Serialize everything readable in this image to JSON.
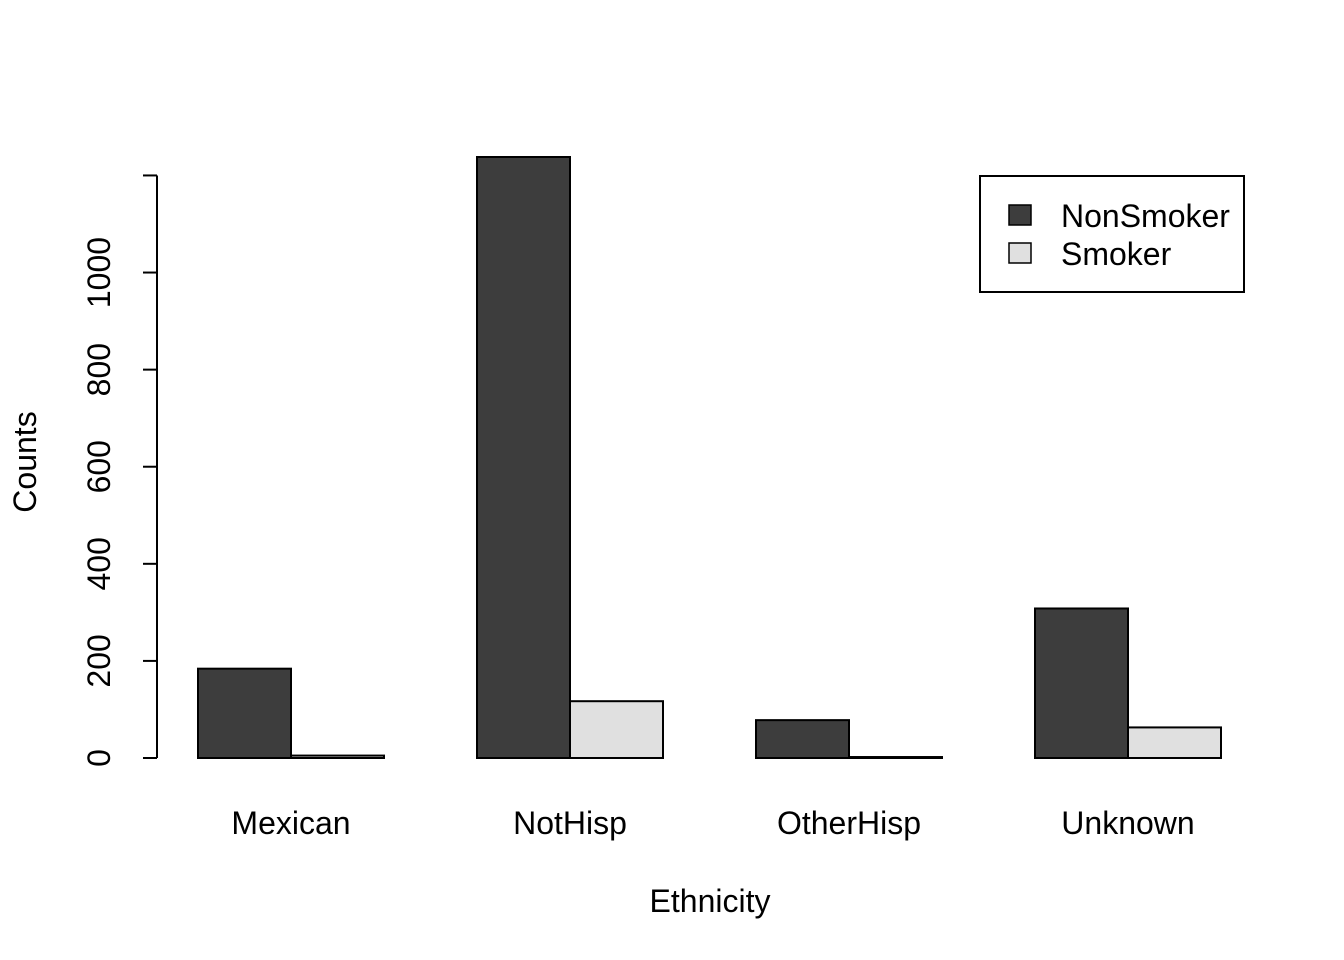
{
  "chart_data": {
    "type": "bar",
    "categories": [
      "Mexican",
      "NotHisp",
      "OtherHisp",
      "Unknown"
    ],
    "series": [
      {
        "name": "NonSmoker",
        "values": [
          184,
          1238,
          78,
          308
        ],
        "color": "#3d3d3d"
      },
      {
        "name": "Smoker",
        "values": [
          5,
          117,
          2,
          63
        ],
        "color": "#e0e0e0"
      }
    ],
    "title": "",
    "xlabel": "Ethnicity",
    "ylabel": "Counts",
    "ylim": [
      0,
      1238
    ],
    "yticks": [
      0,
      200,
      400,
      600,
      800,
      1000
    ],
    "grid": false,
    "legend_position": "top-right"
  }
}
